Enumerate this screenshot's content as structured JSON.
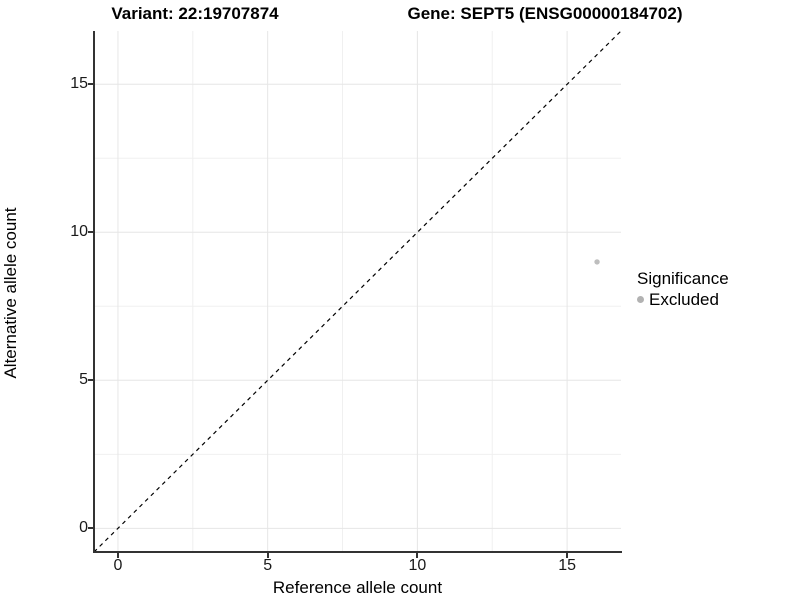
{
  "titles": {
    "variant": "Variant: 22:19707874",
    "gene": "Gene: SEPT5 (ENSG00000184702)"
  },
  "chart_data": {
    "type": "scatter",
    "xlabel": "Reference allele count",
    "ylabel": "Alternative allele count",
    "xlim": [
      -0.8,
      16.8
    ],
    "ylim": [
      -0.8,
      16.8
    ],
    "x_ticks": [
      0,
      5,
      10,
      15
    ],
    "y_ticks": [
      0,
      5,
      10,
      15
    ],
    "x_minor_ticks": [
      2.5,
      7.5,
      12.5
    ],
    "y_minor_ticks": [
      2.5,
      7.5,
      12.5
    ],
    "grid": true,
    "series": [
      {
        "name": "Excluded",
        "points": [
          {
            "x": 16,
            "y": 9
          }
        ],
        "color": "#bebebe",
        "marker_radius": 2.7
      }
    ],
    "reference_line": {
      "type": "abline",
      "slope": 1,
      "intercept": 0,
      "style": "dashed",
      "color": "#000000",
      "width": 1.2,
      "dash": "4,4"
    },
    "legend": {
      "title": "Significance",
      "position": "right",
      "entries": [
        {
          "label": "Excluded",
          "color": "#b2b2b2",
          "marker": "circle"
        }
      ]
    },
    "style": {
      "grid_major_color": "#e6e6e6",
      "grid_minor_color": "#f0f0f0",
      "axis_line_color": "#333333",
      "background": "#ffffff"
    }
  }
}
